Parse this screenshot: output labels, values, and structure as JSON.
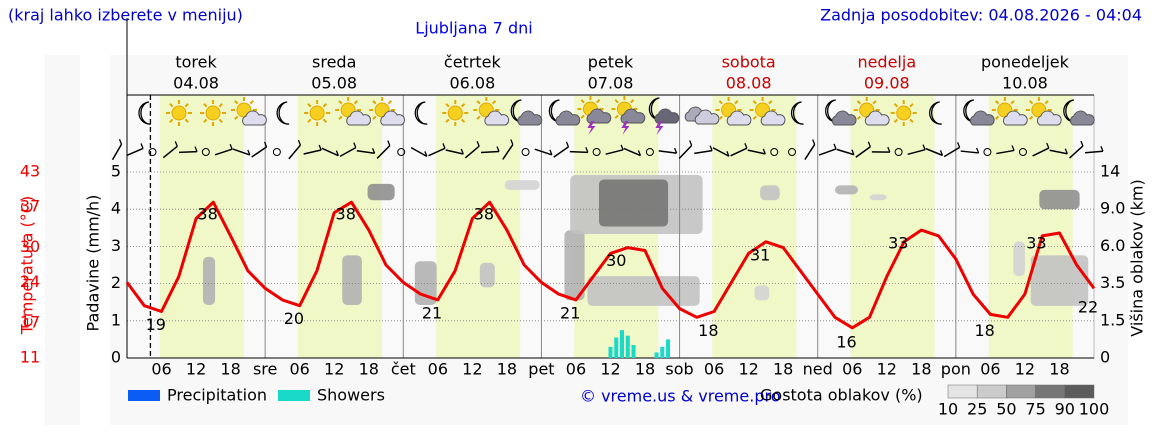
{
  "chart_data": {
    "type": "meteogram",
    "note_left": "(kraj lahko izberete v meniju)",
    "title": "Ljubljana 7 dni",
    "updated": "Zadnja posodobitev: 04.08.2026 - 04:04",
    "days": [
      {
        "name": "torek",
        "date": "04.08",
        "color": "#000000"
      },
      {
        "name": "sreda",
        "date": "05.08",
        "color": "#000000"
      },
      {
        "name": "četrtek",
        "date": "06.08",
        "color": "#000000"
      },
      {
        "name": "petek",
        "date": "07.08",
        "color": "#000000"
      },
      {
        "name": "sobota",
        "date": "08.08",
        "color": "#cc0000"
      },
      {
        "name": "nedelja",
        "date": "09.08",
        "color": "#cc0000"
      },
      {
        "name": "ponedeljek",
        "date": "10.08",
        "color": "#000000"
      }
    ],
    "xlim": [
      0,
      168
    ],
    "xticks": [
      {
        "value": 6,
        "label": "06"
      },
      {
        "value": 12,
        "label": "12"
      },
      {
        "value": 18,
        "label": "18"
      },
      {
        "value": 24,
        "label": "sre"
      },
      {
        "value": 30,
        "label": "06"
      },
      {
        "value": 36,
        "label": "12"
      },
      {
        "value": 42,
        "label": "18"
      },
      {
        "value": 48,
        "label": "čet"
      },
      {
        "value": 54,
        "label": "06"
      },
      {
        "value": 60,
        "label": "12"
      },
      {
        "value": 66,
        "label": "18"
      },
      {
        "value": 72,
        "label": "pet"
      },
      {
        "value": 78,
        "label": "06"
      },
      {
        "value": 84,
        "label": "12"
      },
      {
        "value": 90,
        "label": "18"
      },
      {
        "value": 96,
        "label": "sob"
      },
      {
        "value": 102,
        "label": "06"
      },
      {
        "value": 108,
        "label": "12"
      },
      {
        "value": 114,
        "label": "18"
      },
      {
        "value": 120,
        "label": "ned"
      },
      {
        "value": 126,
        "label": "06"
      },
      {
        "value": 132,
        "label": "12"
      },
      {
        "value": 138,
        "label": "18"
      },
      {
        "value": 144,
        "label": "pon"
      },
      {
        "value": 150,
        "label": "06"
      },
      {
        "value": 156,
        "label": "12"
      },
      {
        "value": 162,
        "label": "18"
      }
    ],
    "now": 4.07,
    "temperature_label": "Temperatura (°C)",
    "temperature_color": "#ee0000",
    "temperature_lim": [
      11,
      43
    ],
    "temperature_ticks": [
      11,
      17,
      24,
      30,
      37,
      43
    ],
    "precipitation_label": "Padavine (mm/h)",
    "ylim": [
      0,
      5
    ],
    "yticks": [
      0,
      1,
      2,
      3,
      4,
      5
    ],
    "grid": true,
    "cloud_height_label": "Višina oblakov (km)",
    "y2lim": [
      0,
      14
    ],
    "y2ticks": [
      0,
      1.5,
      3.5,
      {
        "value": 6,
        "label": "6.0"
      },
      {
        "value": 9,
        "label": "9.0"
      },
      14
    ],
    "temperature": {
      "x": [
        0,
        3,
        6,
        9,
        12,
        15,
        18,
        21,
        24,
        27,
        30,
        33,
        36,
        39,
        42,
        45,
        48,
        51,
        54,
        57,
        60,
        63,
        66,
        69,
        72,
        75,
        78,
        81,
        84,
        87,
        90,
        93,
        96,
        99,
        102,
        105,
        108,
        111,
        114,
        117,
        120,
        123,
        126,
        129,
        132,
        135,
        138,
        141,
        144,
        147,
        150,
        153,
        156,
        159,
        162,
        165,
        168
      ],
      "values": [
        24,
        20,
        19,
        25,
        35,
        37.8,
        32,
        26,
        23,
        21,
        20,
        26,
        36,
        37.8,
        33,
        27,
        24,
        22,
        21,
        26,
        35,
        37.8,
        33,
        27,
        24,
        22,
        21,
        25,
        29,
        30,
        29.5,
        23,
        19.5,
        18,
        19,
        24,
        29,
        31,
        30,
        26,
        22,
        18,
        16.2,
        18,
        25,
        31,
        33,
        32,
        28,
        22,
        18.5,
        18,
        22,
        32,
        32.5,
        27,
        23
      ]
    },
    "extremes": {
      "x": [
        5,
        14,
        29,
        38,
        53,
        62,
        77,
        85,
        101,
        110,
        125,
        134,
        149,
        158,
        168
      ],
      "values": [
        19,
        38,
        20,
        38,
        21,
        38,
        21,
        30,
        18,
        31,
        16,
        33,
        18,
        33,
        22
      ]
    },
    "series": [
      {
        "name": "Precipitation",
        "color": "#0a5cf5",
        "x": [],
        "values": []
      },
      {
        "name": "Showers",
        "color": "#19d9c8",
        "x": [
          84,
          85,
          86,
          87,
          88,
          92,
          93,
          94
        ],
        "values": [
          0.3,
          0.55,
          0.75,
          0.6,
          0.35,
          0.15,
          0.3,
          0.5
        ]
      }
    ],
    "clouds": {
      "start": [
        41.8,
        37.4,
        13.2,
        50,
        61.3,
        76,
        77,
        82,
        65.6,
        80,
        110,
        123,
        129,
        158.5,
        157,
        154,
        109
      ],
      "end": [
        46.5,
        40.8,
        15.3,
        53.8,
        63.9,
        79.5,
        100,
        94,
        71.7,
        99.5,
        113.4,
        127,
        132,
        165.5,
        167,
        156,
        111.6
      ],
      "bottom": [
        10.2,
        2.35,
        2.35,
        2.35,
        3.3,
        2.6,
        7,
        7.6,
        11.6,
        2.3,
        10.2,
        11,
        10.2,
        9,
        2.3,
        4,
        2.6
      ],
      "top": [
        12.4,
        5.4,
        5.3,
        5,
        4.9,
        7.3,
        13.6,
        13,
        12.9,
        4,
        12.2,
        12.2,
        11,
        11.6,
        5.4,
        6.4,
        3.4
      ],
      "density": [
        60,
        40,
        40,
        40,
        30,
        40,
        30,
        75,
        20,
        30,
        30,
        40,
        20,
        60,
        30,
        20,
        20
      ]
    },
    "copyright": "© vreme.us & vreme.pro",
    "density_label": "Gostota oblakov (%)",
    "density_scale": [
      10,
      25,
      50,
      75,
      90,
      100
    ]
  }
}
